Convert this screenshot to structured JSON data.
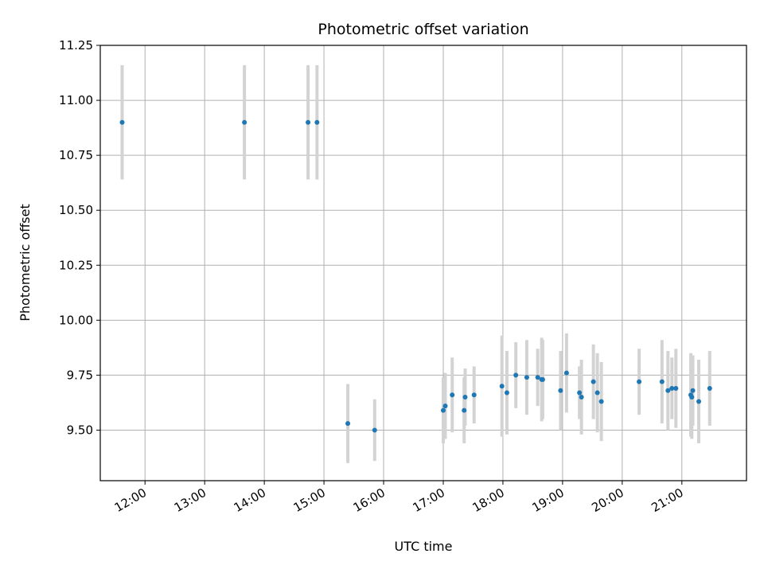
{
  "chart_data": {
    "type": "scatter",
    "title": "Photometric offset variation",
    "xlabel": "UTC time",
    "ylabel": "Photometric offset",
    "xlim": [
      "11:15",
      "22:05"
    ],
    "ylim": [
      9.27,
      11.25
    ],
    "grid": true,
    "x_ticks": [
      "12:00",
      "13:00",
      "14:00",
      "15:00",
      "16:00",
      "17:00",
      "18:00",
      "19:00",
      "20:00",
      "21:00"
    ],
    "y_ticks": [
      "9.50",
      "9.75",
      "10.00",
      "10.25",
      "10.50",
      "10.75",
      "11.00",
      "11.25"
    ],
    "colors": {
      "point": "#1f77b4",
      "errorbar": "#d3d3d3",
      "grid": "#b0b0b0"
    },
    "points": [
      {
        "x": "11:37",
        "y": 10.9,
        "err": 0.26
      },
      {
        "x": "13:40",
        "y": 10.9,
        "err": 0.26
      },
      {
        "x": "14:44",
        "y": 10.9,
        "err": 0.26
      },
      {
        "x": "14:53",
        "y": 10.9,
        "err": 0.26
      },
      {
        "x": "15:24",
        "y": 9.53,
        "err": 0.18
      },
      {
        "x": "15:51",
        "y": 9.5,
        "err": 0.14
      },
      {
        "x": "17:00",
        "y": 9.59,
        "err": 0.15
      },
      {
        "x": "17:02",
        "y": 9.61,
        "err": 0.15
      },
      {
        "x": "17:09",
        "y": 9.66,
        "err": 0.17
      },
      {
        "x": "17:21",
        "y": 9.59,
        "err": 0.15
      },
      {
        "x": "17:22",
        "y": 9.65,
        "err": 0.13
      },
      {
        "x": "17:31",
        "y": 9.66,
        "err": 0.13
      },
      {
        "x": "17:59",
        "y": 9.7,
        "err": 0.23
      },
      {
        "x": "18:04",
        "y": 9.67,
        "err": 0.19
      },
      {
        "x": "18:13",
        "y": 9.75,
        "err": 0.15
      },
      {
        "x": "18:24",
        "y": 9.74,
        "err": 0.17
      },
      {
        "x": "18:35",
        "y": 9.74,
        "err": 0.13
      },
      {
        "x": "18:39",
        "y": 9.73,
        "err": 0.19
      },
      {
        "x": "18:40",
        "y": 9.73,
        "err": 0.18
      },
      {
        "x": "18:58",
        "y": 9.68,
        "err": 0.18
      },
      {
        "x": "19:04",
        "y": 9.76,
        "err": 0.18
      },
      {
        "x": "19:17",
        "y": 9.67,
        "err": 0.12
      },
      {
        "x": "19:19",
        "y": 9.65,
        "err": 0.17
      },
      {
        "x": "19:31",
        "y": 9.72,
        "err": 0.17
      },
      {
        "x": "19:35",
        "y": 9.67,
        "err": 0.18
      },
      {
        "x": "19:39",
        "y": 9.63,
        "err": 0.18
      },
      {
        "x": "20:17",
        "y": 9.72,
        "err": 0.15
      },
      {
        "x": "20:40",
        "y": 9.72,
        "err": 0.19
      },
      {
        "x": "20:46",
        "y": 9.68,
        "err": 0.18
      },
      {
        "x": "20:50",
        "y": 9.69,
        "err": 0.14
      },
      {
        "x": "20:54",
        "y": 9.69,
        "err": 0.18
      },
      {
        "x": "21:09",
        "y": 9.66,
        "err": 0.19
      },
      {
        "x": "21:10",
        "y": 9.65,
        "err": 0.19
      },
      {
        "x": "21:11",
        "y": 9.68,
        "err": 0.16
      },
      {
        "x": "21:17",
        "y": 9.63,
        "err": 0.19
      },
      {
        "x": "21:28",
        "y": 9.69,
        "err": 0.17
      }
    ]
  }
}
